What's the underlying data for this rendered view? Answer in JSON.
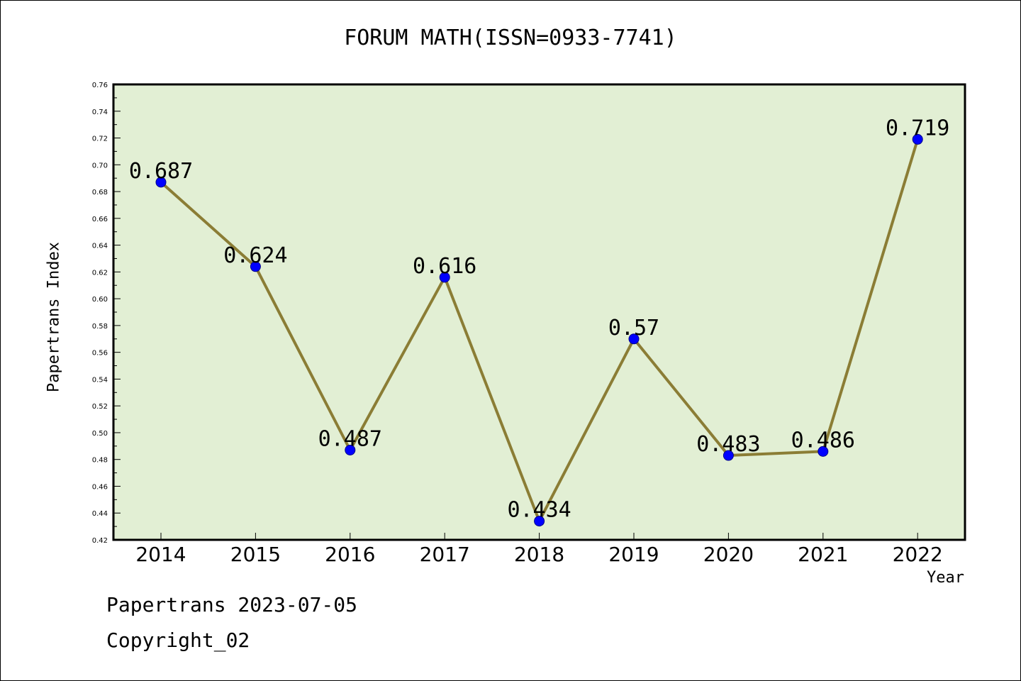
{
  "title": "FORUM MATH(ISSN=0933-7741)",
  "footer": {
    "line1": "Papertrans 2023-07-05",
    "line2": "Copyright_02"
  },
  "colors": {
    "plot_background": "#e2efd4",
    "line": "#8b7d35",
    "marker": "#0000ff",
    "marker_edge": "#00008b"
  },
  "chart_data": {
    "type": "line",
    "title": "FORUM MATH(ISSN=0933-7741)",
    "xlabel": "Year",
    "ylabel": "Papertrans Index",
    "categories": [
      "2014",
      "2015",
      "2016",
      "2017",
      "2018",
      "2019",
      "2020",
      "2021",
      "2022"
    ],
    "values": [
      0.687,
      0.624,
      0.487,
      0.616,
      0.434,
      0.57,
      0.483,
      0.486,
      0.719
    ],
    "data_labels": [
      "0.687",
      "0.624",
      "0.487",
      "0.616",
      "0.434",
      "0.57",
      "0.483",
      "0.486",
      "0.719"
    ],
    "ylim": [
      0.42,
      0.76
    ],
    "yticks": [
      "0.42",
      "0.44",
      "0.46",
      "0.48",
      "0.50",
      "0.52",
      "0.54",
      "0.56",
      "0.58",
      "0.60",
      "0.62",
      "0.64",
      "0.66",
      "0.68",
      "0.70",
      "0.72",
      "0.74",
      "0.76"
    ],
    "grid": false,
    "legend": "none"
  }
}
